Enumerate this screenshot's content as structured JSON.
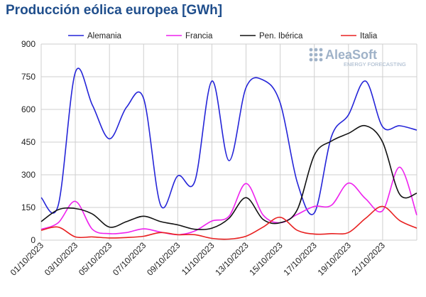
{
  "title": "Producción eólica europea [GWh]",
  "logo": {
    "brand": "AleaSoft",
    "tagline": "ENERGY FORECASTING"
  },
  "chart_data": {
    "type": "line",
    "title": "Producción eólica europea [GWh]",
    "xlabel": "",
    "ylabel": "",
    "ylim": [
      0,
      900
    ],
    "yticks": [
      0,
      150,
      300,
      450,
      600,
      750,
      900
    ],
    "xlim": [
      "01/10/2023",
      "23/10/2023"
    ],
    "x_tick_labels": [
      "01/10/2023",
      "03/10/2023",
      "05/10/2023",
      "07/10/2023",
      "09/10/2023",
      "11/10/2023",
      "13/10/2023",
      "15/10/2023",
      "17/10/2023",
      "19/10/2023",
      "21/10/2023"
    ],
    "x": [
      "01/10/2023",
      "02/10/2023",
      "03/10/2023",
      "04/10/2023",
      "05/10/2023",
      "06/10/2023",
      "07/10/2023",
      "08/10/2023",
      "09/10/2023",
      "10/10/2023",
      "11/10/2023",
      "12/10/2023",
      "13/10/2023",
      "14/10/2023",
      "15/10/2023",
      "16/10/2023",
      "17/10/2023",
      "18/10/2023",
      "19/10/2023",
      "20/10/2023",
      "21/10/2023",
      "22/10/2023",
      "23/10/2023"
    ],
    "grid": true,
    "legend_position": "top",
    "series": [
      {
        "name": "Alemania",
        "color": "#2424d8",
        "values": [
          195,
          160,
          770,
          620,
          465,
          610,
          650,
          160,
          295,
          270,
          730,
          365,
          700,
          735,
          630,
          265,
          125,
          475,
          575,
          730,
          520,
          525,
          505
        ]
      },
      {
        "name": "Francia",
        "color": "#ee22ee",
        "values": [
          50,
          80,
          178,
          50,
          30,
          35,
          52,
          37,
          25,
          42,
          88,
          110,
          260,
          115,
          80,
          118,
          155,
          160,
          262,
          190,
          135,
          335,
          115
        ]
      },
      {
        "name": "Pen. Ibérica",
        "color": "#111111",
        "values": [
          85,
          140,
          145,
          120,
          60,
          85,
          110,
          85,
          70,
          50,
          55,
          100,
          195,
          95,
          80,
          140,
          390,
          455,
          490,
          525,
          450,
          210,
          215
        ]
      },
      {
        "name": "Italia",
        "color": "#e82020",
        "values": [
          45,
          60,
          15,
          15,
          10,
          12,
          18,
          35,
          25,
          25,
          8,
          5,
          18,
          60,
          105,
          45,
          28,
          30,
          35,
          100,
          155,
          90,
          55
        ]
      }
    ]
  }
}
